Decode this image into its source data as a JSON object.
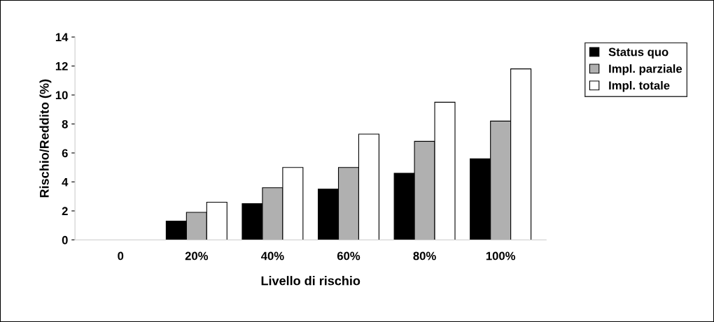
{
  "chart_data": {
    "type": "bar",
    "xlabel": "Livello di rischio",
    "ylabel": "Rischio/Reddito (%)",
    "categories": [
      "0",
      "20%",
      "40%",
      "60%",
      "80%",
      "100%"
    ],
    "series": [
      {
        "name": "Status quo",
        "color": "#000000",
        "values": [
          0,
          1.3,
          2.5,
          3.5,
          4.6,
          5.6
        ]
      },
      {
        "name": "Impl. parziale",
        "color": "#b0b0b0",
        "values": [
          0,
          1.9,
          3.6,
          5.0,
          6.8,
          8.2
        ]
      },
      {
        "name": "Impl. totale",
        "color": "#ffffff",
        "values": [
          0,
          2.6,
          5.0,
          7.3,
          9.5,
          11.8
        ]
      }
    ],
    "ylim": [
      0,
      14
    ],
    "yticks": [
      0,
      2,
      4,
      6,
      8,
      10,
      12,
      14
    ],
    "grid": false,
    "legend": "top right"
  }
}
